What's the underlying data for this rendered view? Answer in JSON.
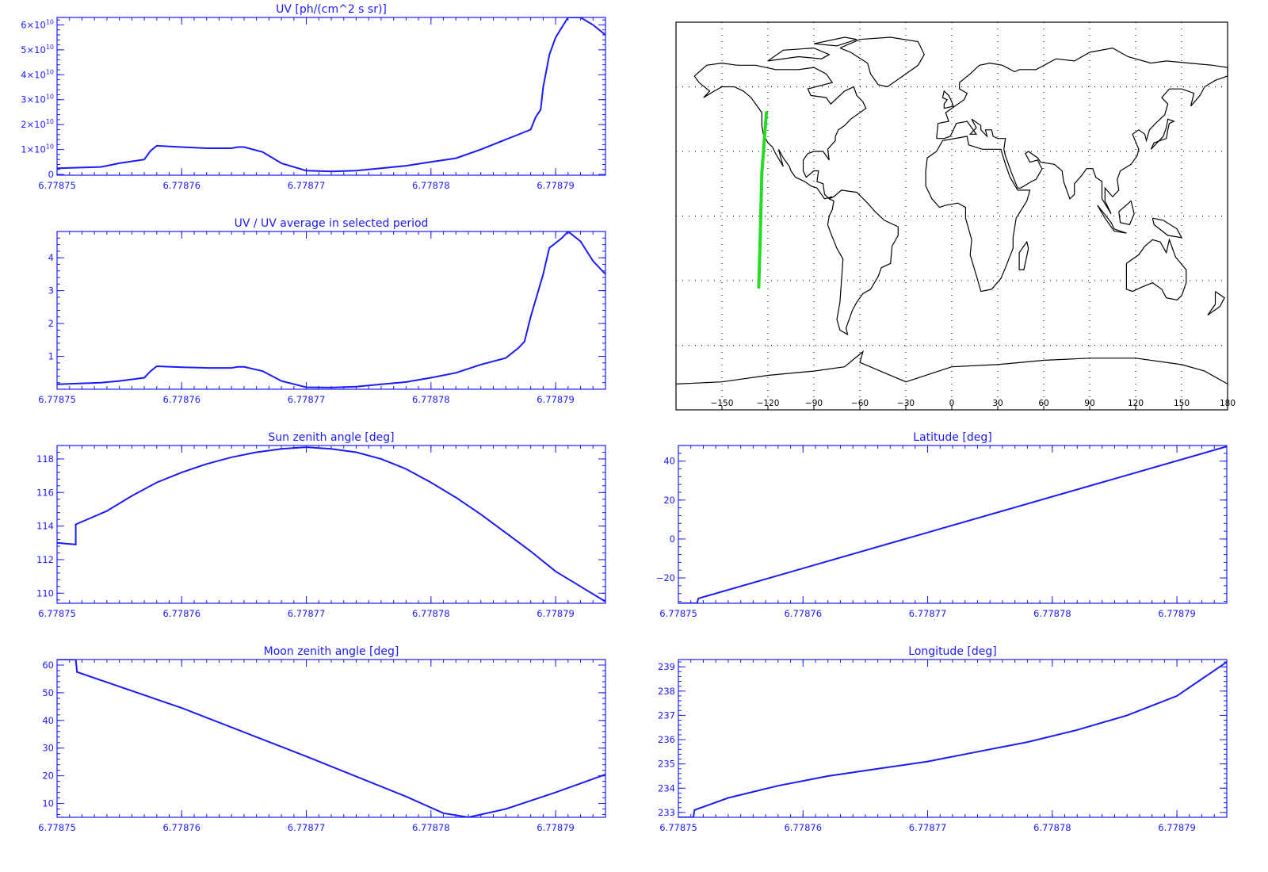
{
  "colors": {
    "axis": "#1a1aff",
    "map_frame": "#000000",
    "coast": "#000000",
    "track": "#22dd22",
    "grid": "#000000"
  },
  "chart_data": [
    {
      "id": "uv",
      "type": "line",
      "title": "UV [ph/(cm^2 s sr)]",
      "xlim": [
        6.77875,
        6.778794
      ],
      "ylim": [
        -300000000.0,
        63000000000.0
      ],
      "x_ticks": [
        "6.77875",
        "6.77876",
        "6.77877",
        "6.77878",
        "6.77879"
      ],
      "x_tick_values": [
        6.77875,
        6.77876,
        6.77877,
        6.77878,
        6.77879
      ],
      "y_ticks": [
        {
          "value": 0,
          "mant": "0",
          "exp": ""
        },
        {
          "value": 10000000000.0,
          "mant": "1×10",
          "exp": "10"
        },
        {
          "value": 20000000000.0,
          "mant": "2×10",
          "exp": "10"
        },
        {
          "value": 30000000000.0,
          "mant": "3×10",
          "exp": "10"
        },
        {
          "value": 40000000000.0,
          "mant": "4×10",
          "exp": "10"
        },
        {
          "value": 50000000000.0,
          "mant": "5×10",
          "exp": "10"
        },
        {
          "value": 60000000000.0,
          "mant": "6×10",
          "exp": "10"
        }
      ],
      "series": [
        {
          "x": [
            6.77875,
            6.7787535,
            6.778754,
            6.778755,
            6.778757,
            6.7787575,
            6.778758,
            6.77876,
            6.778762,
            6.778764,
            6.7787645,
            6.778765,
            6.7787665,
            6.778768,
            6.77877,
            6.778772,
            6.778774,
            6.778776,
            6.778778,
            6.77878,
            6.778782,
            6.778784,
            6.778786,
            6.778788,
            6.7787884,
            6.7787888,
            6.778789,
            6.7787895,
            6.77879,
            6.778791,
            6.778792,
            6.778793,
            6.778794
          ],
          "y": [
            2500000000.0,
            3000000000.0,
            3500000000.0,
            4500000000.0,
            6000000000.0,
            9500000000.0,
            11500000000.0,
            11000000000.0,
            10500000000.0,
            10500000000.0,
            11000000000.0,
            11000000000.0,
            9000000000.0,
            4500000000.0,
            1500000000.0,
            1200000000.0,
            1500000000.0,
            2500000000.0,
            3500000000.0,
            5000000000.0,
            6500000000.0,
            10000000000.0,
            14000000000.0,
            18000000000.0,
            23000000000.0,
            26000000000.0,
            35000000000.0,
            48000000000.0,
            55000000000.0,
            63000000000.0,
            63000000000.0,
            60000000000.0,
            56000000000.0
          ]
        }
      ]
    },
    {
      "id": "uvratio",
      "type": "line",
      "title": "UV / UV average in selected period",
      "xlim": [
        6.77875,
        6.778794
      ],
      "ylim": [
        0,
        4.8
      ],
      "x_ticks": [
        "6.77875",
        "6.77876",
        "6.77877",
        "6.77878",
        "6.77879"
      ],
      "x_tick_values": [
        6.77875,
        6.77876,
        6.77877,
        6.77878,
        6.77879
      ],
      "y_ticks": [
        {
          "value": 1,
          "mant": "1",
          "exp": ""
        },
        {
          "value": 2,
          "mant": "2",
          "exp": ""
        },
        {
          "value": 3,
          "mant": "3",
          "exp": ""
        },
        {
          "value": 4,
          "mant": "4",
          "exp": ""
        }
      ],
      "series": [
        {
          "x": [
            6.77875,
            6.7787535,
            6.778755,
            6.778757,
            6.7787575,
            6.778758,
            6.77876,
            6.778762,
            6.778764,
            6.7787645,
            6.778765,
            6.7787665,
            6.778768,
            6.77877,
            6.778772,
            6.778774,
            6.778776,
            6.778778,
            6.77878,
            6.778782,
            6.778784,
            6.778786,
            6.778787,
            6.7787875,
            6.778788,
            6.778789,
            6.7787895,
            6.7787905,
            6.778791,
            6.778792,
            6.778793,
            6.778794
          ],
          "y": [
            0.15,
            0.2,
            0.25,
            0.35,
            0.55,
            0.7,
            0.67,
            0.65,
            0.65,
            0.68,
            0.68,
            0.55,
            0.25,
            0.06,
            0.05,
            0.08,
            0.15,
            0.22,
            0.35,
            0.5,
            0.75,
            0.95,
            1.25,
            1.45,
            2.2,
            3.5,
            4.3,
            4.6,
            4.8,
            4.5,
            3.9,
            3.5
          ]
        }
      ]
    },
    {
      "id": "sza",
      "type": "line",
      "title": "Sun zenith angle [deg]",
      "xlim": [
        6.77875,
        6.778794
      ],
      "ylim": [
        109.4,
        118.8
      ],
      "x_ticks": [
        "6.77875",
        "6.77876",
        "6.77877",
        "6.77878",
        "6.77879"
      ],
      "x_tick_values": [
        6.77875,
        6.77876,
        6.77877,
        6.77878,
        6.77879
      ],
      "y_ticks": [
        {
          "value": 110,
          "mant": "110",
          "exp": ""
        },
        {
          "value": 112,
          "mant": "112",
          "exp": ""
        },
        {
          "value": 114,
          "mant": "114",
          "exp": ""
        },
        {
          "value": 116,
          "mant": "116",
          "exp": ""
        },
        {
          "value": 118,
          "mant": "118",
          "exp": ""
        }
      ],
      "series": [
        {
          "x": [
            6.77875,
            6.7787515,
            6.7787515,
            6.778754,
            6.778756,
            6.778758,
            6.77876,
            6.778762,
            6.778764,
            6.778766,
            6.778768,
            6.77877,
            6.778772,
            6.778774,
            6.778776,
            6.778778,
            6.77878,
            6.778782,
            6.778784,
            6.778786,
            6.778788,
            6.77879,
            6.778792,
            6.778794
          ],
          "y": [
            113.0,
            112.9,
            114.1,
            114.9,
            115.8,
            116.6,
            117.2,
            117.7,
            118.1,
            118.4,
            118.6,
            118.7,
            118.6,
            118.4,
            118.0,
            117.4,
            116.6,
            115.7,
            114.7,
            113.6,
            112.5,
            111.3,
            110.4,
            109.5
          ]
        }
      ]
    },
    {
      "id": "lat",
      "type": "line",
      "title": "Latitude [deg]",
      "xlim": [
        6.77875,
        6.778794
      ],
      "ylim": [
        -33,
        48
      ],
      "x_ticks": [
        "6.77875",
        "6.77876",
        "6.77877",
        "6.77878",
        "6.77879"
      ],
      "x_tick_values": [
        6.77875,
        6.77876,
        6.77877,
        6.77878,
        6.77879
      ],
      "y_ticks": [
        {
          "value": -20,
          "mant": "−20",
          "exp": ""
        },
        {
          "value": 0,
          "mant": "0",
          "exp": ""
        },
        {
          "value": 20,
          "mant": "20",
          "exp": ""
        },
        {
          "value": 40,
          "mant": "40",
          "exp": ""
        }
      ],
      "series": [
        {
          "x": [
            6.77875,
            6.7787515,
            6.7787516,
            6.778794
          ],
          "y": [
            -33,
            -33,
            -30.5,
            47.5
          ]
        }
      ]
    },
    {
      "id": "mza",
      "type": "line",
      "title": "Moon zenith angle [deg]",
      "xlim": [
        6.77875,
        6.778794
      ],
      "ylim": [
        5,
        62
      ],
      "x_ticks": [
        "6.77875",
        "6.77876",
        "6.77877",
        "6.77878",
        "6.77879"
      ],
      "x_tick_values": [
        6.77875,
        6.77876,
        6.77877,
        6.77878,
        6.77879
      ],
      "y_ticks": [
        {
          "value": 10,
          "mant": "10",
          "exp": ""
        },
        {
          "value": 20,
          "mant": "20",
          "exp": ""
        },
        {
          "value": 30,
          "mant": "30",
          "exp": ""
        },
        {
          "value": 40,
          "mant": "40",
          "exp": ""
        },
        {
          "value": 50,
          "mant": "50",
          "exp": ""
        },
        {
          "value": 60,
          "mant": "60",
          "exp": ""
        }
      ],
      "series": [
        {
          "x": [
            6.77875,
            6.7787515,
            6.7787516,
            6.77876,
            6.77877,
            6.778778,
            6.778781,
            6.778783,
            6.778786,
            6.77879,
            6.778794
          ],
          "y": [
            62,
            62,
            57.5,
            44.5,
            27.0,
            12.5,
            6.5,
            5.0,
            8.0,
            14.0,
            20.5
          ]
        }
      ]
    },
    {
      "id": "lon",
      "type": "line",
      "title": "Longitude [deg]",
      "xlim": [
        6.77875,
        6.778794
      ],
      "ylim": [
        232.8,
        239.3
      ],
      "x_ticks": [
        "6.77875",
        "6.77876",
        "6.77877",
        "6.77878",
        "6.77879"
      ],
      "x_tick_values": [
        6.77875,
        6.77876,
        6.77877,
        6.77878,
        6.77879
      ],
      "y_ticks": [
        {
          "value": 233,
          "mant": "233",
          "exp": ""
        },
        {
          "value": 234,
          "mant": "234",
          "exp": ""
        },
        {
          "value": 235,
          "mant": "235",
          "exp": ""
        },
        {
          "value": 236,
          "mant": "236",
          "exp": ""
        },
        {
          "value": 237,
          "mant": "237",
          "exp": ""
        },
        {
          "value": 238,
          "mant": "238",
          "exp": ""
        },
        {
          "value": 239,
          "mant": "239",
          "exp": ""
        }
      ],
      "series": [
        {
          "x": [
            6.77875,
            6.7787512,
            6.7787513,
            6.778754,
            6.778758,
            6.778762,
            6.778766,
            6.77877,
            6.778774,
            6.778778,
            6.778782,
            6.778786,
            6.77879,
            6.778792,
            6.778794
          ],
          "y": [
            232.8,
            232.8,
            233.1,
            233.6,
            234.1,
            234.5,
            234.8,
            235.1,
            235.5,
            235.9,
            236.4,
            237.0,
            237.8,
            238.5,
            239.2
          ]
        }
      ]
    }
  ],
  "map": {
    "lon_ticks": [
      "−150",
      "−120",
      "−90",
      "−60",
      "−30",
      "0",
      "30",
      "60",
      "90",
      "120",
      "150",
      "180"
    ],
    "lon_tick_values": [
      -150,
      -120,
      -90,
      -60,
      -30,
      0,
      30,
      60,
      90,
      120,
      150,
      180
    ],
    "lon_range": [
      -180,
      180
    ],
    "lat_range": [
      -90,
      90
    ],
    "grid_lons": [
      -150,
      -120,
      -90,
      -60,
      -30,
      0,
      30,
      60,
      90,
      120,
      150
    ],
    "grid_lats": [
      -60,
      -30,
      0,
      30,
      60
    ],
    "track": {
      "lon": [
        -121,
        -124,
        -125,
        -126
      ],
      "lat": [
        48,
        20,
        -10,
        -33
      ]
    }
  }
}
